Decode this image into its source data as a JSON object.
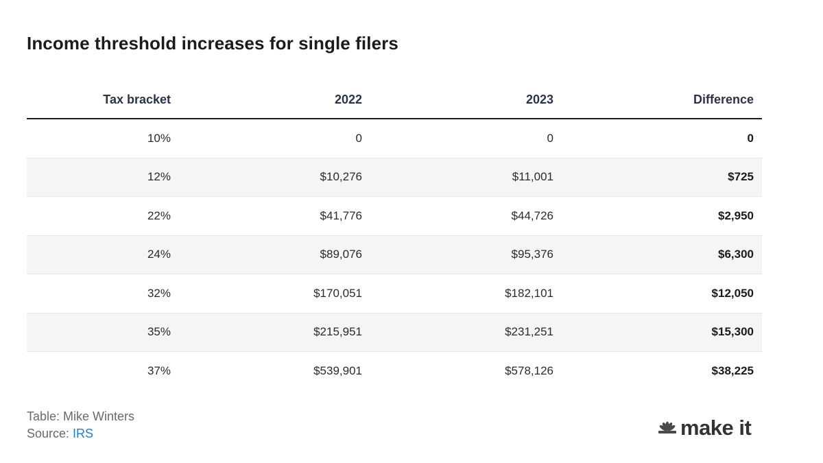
{
  "title": "Income threshold increases for single filers",
  "chart_data": {
    "type": "table",
    "title": "Income threshold increases for single filers",
    "columns": [
      "Tax bracket",
      "2022",
      "2023",
      "Difference"
    ],
    "rows": [
      [
        "10%",
        "0",
        "0",
        "0"
      ],
      [
        "12%",
        "$10,276",
        "$11,001",
        "$725"
      ],
      [
        "22%",
        "$41,776",
        "$44,726",
        "$2,950"
      ],
      [
        "24%",
        "$89,076",
        "$95,376",
        "$6,300"
      ],
      [
        "32%",
        "$170,051",
        "$182,101",
        "$12,050"
      ],
      [
        "35%",
        "$215,951",
        "$231,251",
        "$15,300"
      ],
      [
        "37%",
        "$539,901",
        "$578,126",
        "$38,225"
      ]
    ]
  },
  "footer": {
    "credit": "Table: Mike Winters",
    "source_label": "Source: ",
    "source_link": "IRS"
  },
  "logo": {
    "text": "make it",
    "icon": "peacock-icon",
    "brand_color": "#333333"
  },
  "colors": {
    "link": "#1a84c9",
    "stripe": "#f5f5f5",
    "header_text": "#2b3447"
  }
}
